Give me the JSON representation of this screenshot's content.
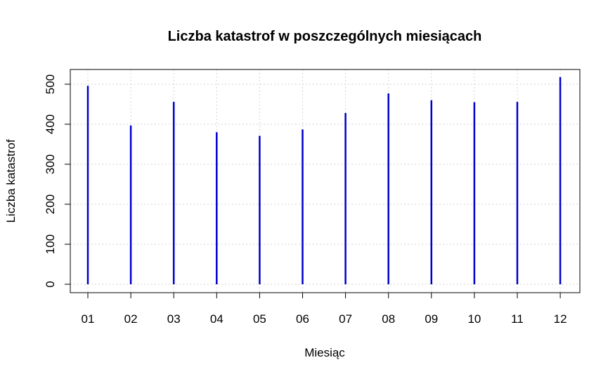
{
  "chart_data": {
    "type": "bar",
    "title": "Liczba katastrof w poszczególnych miesiącach",
    "xlabel": "Miesiąc",
    "ylabel": "Liczba katastrof",
    "categories": [
      "01",
      "02",
      "03",
      "04",
      "05",
      "06",
      "07",
      "08",
      "09",
      "10",
      "11",
      "12"
    ],
    "values": [
      496,
      397,
      456,
      380,
      371,
      387,
      428,
      477,
      460,
      455,
      456,
      518
    ],
    "ylim": [
      0,
      540
    ],
    "yticks": [
      0,
      100,
      200,
      300,
      400,
      500
    ],
    "grid": true,
    "color": "#0000cd"
  }
}
